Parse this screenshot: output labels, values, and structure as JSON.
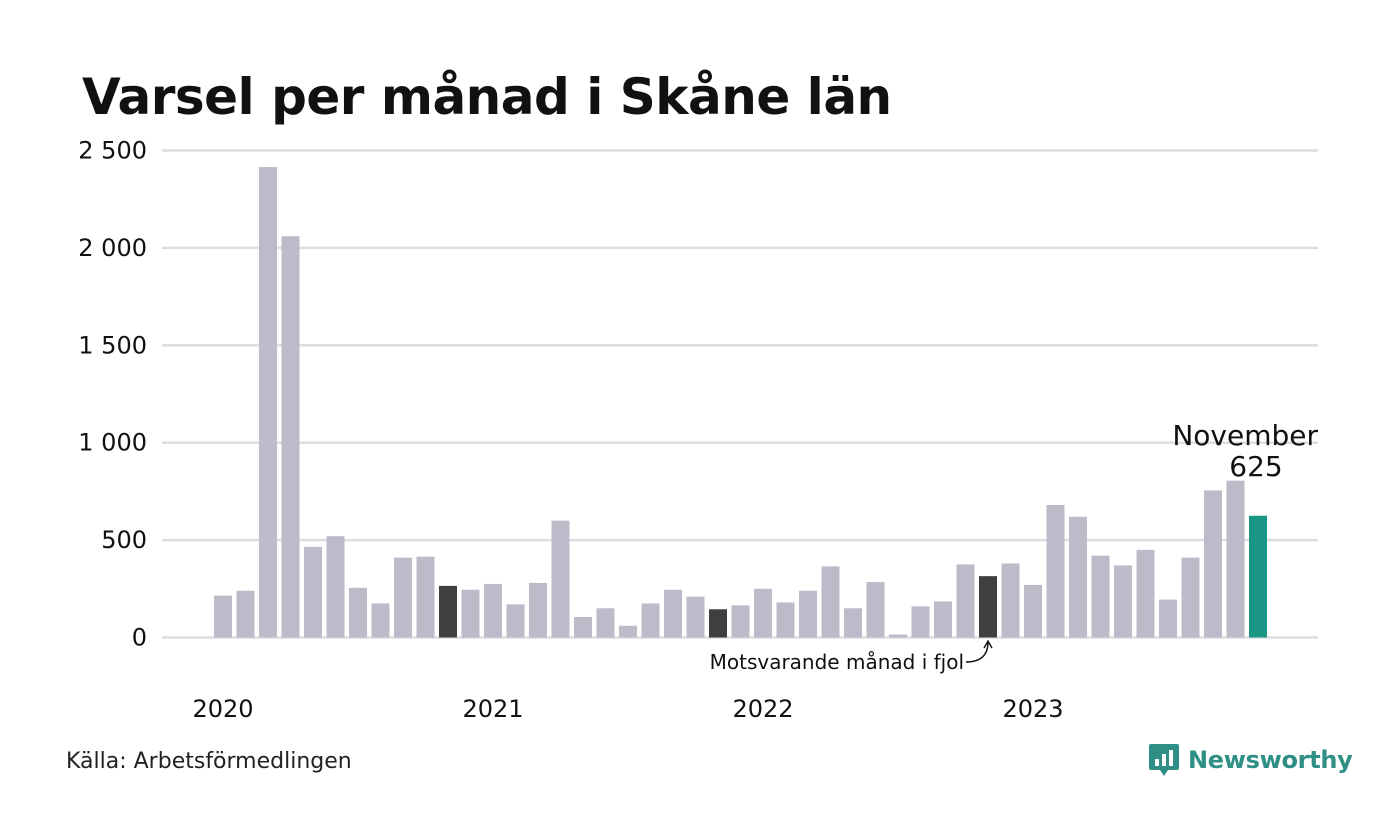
{
  "chart_data": {
    "type": "bar",
    "title": "Varsel per månad i Skåne län",
    "xlabel": "",
    "ylabel": "",
    "ylim": [
      0,
      2500
    ],
    "yticks": [
      0,
      500,
      1000,
      1500,
      2000,
      2500
    ],
    "ytick_labels": [
      "0",
      "500",
      "1 000",
      "1 500",
      "2 000",
      "2 500"
    ],
    "year_labels": [
      "2020",
      "2021",
      "2022",
      "2023"
    ],
    "grid": true,
    "values": [
      215,
      240,
      2415,
      2060,
      465,
      520,
      255,
      175,
      410,
      415,
      265,
      245,
      275,
      170,
      280,
      600,
      105,
      150,
      60,
      175,
      245,
      210,
      145,
      165,
      250,
      180,
      240,
      365,
      150,
      285,
      15,
      160,
      185,
      375,
      315,
      380,
      270,
      680,
      620,
      420,
      370,
      450,
      195,
      410,
      755,
      805,
      625
    ],
    "highlight": {
      "index": 46,
      "label": "November",
      "value_label": "625",
      "color": "#1a9685"
    },
    "comparison_indices": [
      10,
      22,
      34
    ],
    "comparison_annotation": "Motsvarande månad i fjol",
    "colors": {
      "bar": "#bcbbc9",
      "comparison": "#3f3f3f",
      "current": "#1a9685",
      "grid": "#dddde3"
    }
  },
  "source": "Källa: Arbetsförmedlingen",
  "brand": {
    "name": "Newsworthy",
    "icon": "bar-chart-speech-bubble-icon",
    "color": "#2f8f85"
  }
}
